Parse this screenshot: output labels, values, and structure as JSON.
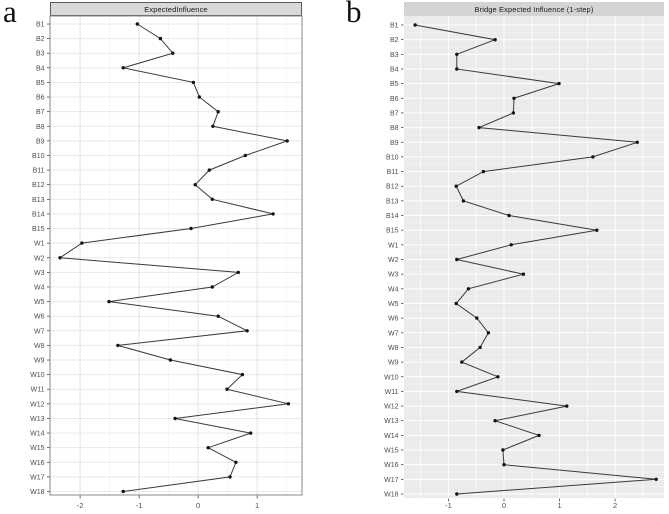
{
  "panels": [
    {
      "panel_label": "a",
      "title": "ExpectedInfluence"
    },
    {
      "panel_label": "b",
      "title": "Bridge Expected Influence (1-step)"
    }
  ],
  "chart_data": [
    {
      "type": "line",
      "orientation": "horizontal-categories-dot-line",
      "panel_label": "a",
      "title": "ExpectedInfluence",
      "xlabel": "",
      "ylabel": "",
      "theme": "bw-bordered",
      "grid": true,
      "legend": "none",
      "xlim": [
        -2.51,
        1.76
      ],
      "xticks": [
        -2,
        -1,
        0,
        1
      ],
      "categories": [
        "B1",
        "B2",
        "B3",
        "B4",
        "B5",
        "B6",
        "B7",
        "B8",
        "B9",
        "B10",
        "B11",
        "B12",
        "B13",
        "B14",
        "B15",
        "W1",
        "W2",
        "W3",
        "W4",
        "W5",
        "W6",
        "W7",
        "W8",
        "W9",
        "W10",
        "W11",
        "W12",
        "W13",
        "W14",
        "W15",
        "W16",
        "W17",
        "W18"
      ],
      "values": [
        -1.03,
        -0.64,
        -0.43,
        -1.27,
        -0.08,
        0.02,
        0.34,
        0.25,
        1.51,
        0.8,
        0.19,
        -0.05,
        0.24,
        1.27,
        -0.12,
        -1.97,
        -2.34,
        0.68,
        0.24,
        -1.51,
        0.34,
        0.83,
        -1.36,
        -0.47,
        0.75,
        0.49,
        1.53,
        -0.39,
        0.89,
        0.17,
        0.64,
        0.54,
        -1.27
      ],
      "line_color": "#3a3a3a",
      "point_color": "#141414"
    },
    {
      "type": "line",
      "orientation": "horizontal-categories-dot-line",
      "panel_label": "b",
      "title": "Bridge Expected Influence (1-step)",
      "xlabel": "",
      "ylabel": "",
      "theme": "grey",
      "grid": true,
      "legend": "none",
      "xlim": [
        -1.8,
        2.88
      ],
      "xticks": [
        -1,
        0,
        1,
        2
      ],
      "categories": [
        "B1",
        "B2",
        "B3",
        "B4",
        "B5",
        "B6",
        "B7",
        "B8",
        "B9",
        "B10",
        "B11",
        "B12",
        "B13",
        "B14",
        "B15",
        "W1",
        "W2",
        "W3",
        "W4",
        "W5",
        "W6",
        "W7",
        "W8",
        "W9",
        "W10",
        "W11",
        "W12",
        "W13",
        "W14",
        "W15",
        "W16",
        "W17",
        "W18"
      ],
      "values": [
        -1.6,
        -0.16,
        -0.85,
        -0.85,
        0.99,
        0.18,
        0.17,
        -0.45,
        2.4,
        1.6,
        -0.37,
        -0.86,
        -0.73,
        0.09,
        1.67,
        0.13,
        -0.85,
        0.35,
        -0.64,
        -0.86,
        -0.49,
        -0.28,
        -0.43,
        -0.76,
        -0.11,
        -0.85,
        1.13,
        -0.16,
        0.63,
        -0.02,
        0.0,
        2.74,
        -0.85
      ],
      "line_color": "#3a3a3a",
      "point_color": "#141414"
    }
  ]
}
